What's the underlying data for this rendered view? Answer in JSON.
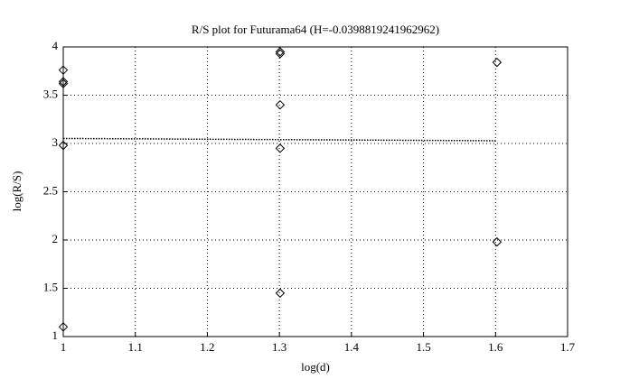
{
  "chart_data": {
    "type": "scatter",
    "title": "R/S plot for Futurama64 (H=-0.0398819241962962)",
    "x_label": "log(d)",
    "y_label": "log(R/S)",
    "xlim": [
      1,
      1.7
    ],
    "xticks": [
      1,
      1.1,
      1.2,
      1.3,
      1.4,
      1.5,
      1.6,
      1.7
    ],
    "ylim": [
      1,
      4
    ],
    "yticks": [
      1,
      1.5,
      2,
      2.5,
      3,
      3.5,
      4
    ],
    "grid": true,
    "series": [
      {
        "color": "#000000",
        "marker": "diamond",
        "x": [
          1,
          1,
          1,
          1,
          1,
          1.301,
          1.301,
          1.301,
          1.301,
          1.301,
          1.602,
          1.602
        ],
        "values": [
          3.76,
          3.64,
          3.62,
          2.98,
          1.1,
          3.95,
          3.93,
          3.4,
          2.95,
          1.45,
          3.84,
          1.98
        ]
      },
      {
        "color": "#000000",
        "line": "dotted",
        "x": [
          1,
          1.602
        ],
        "values": [
          3.052,
          3.028
        ]
      }
    ]
  }
}
